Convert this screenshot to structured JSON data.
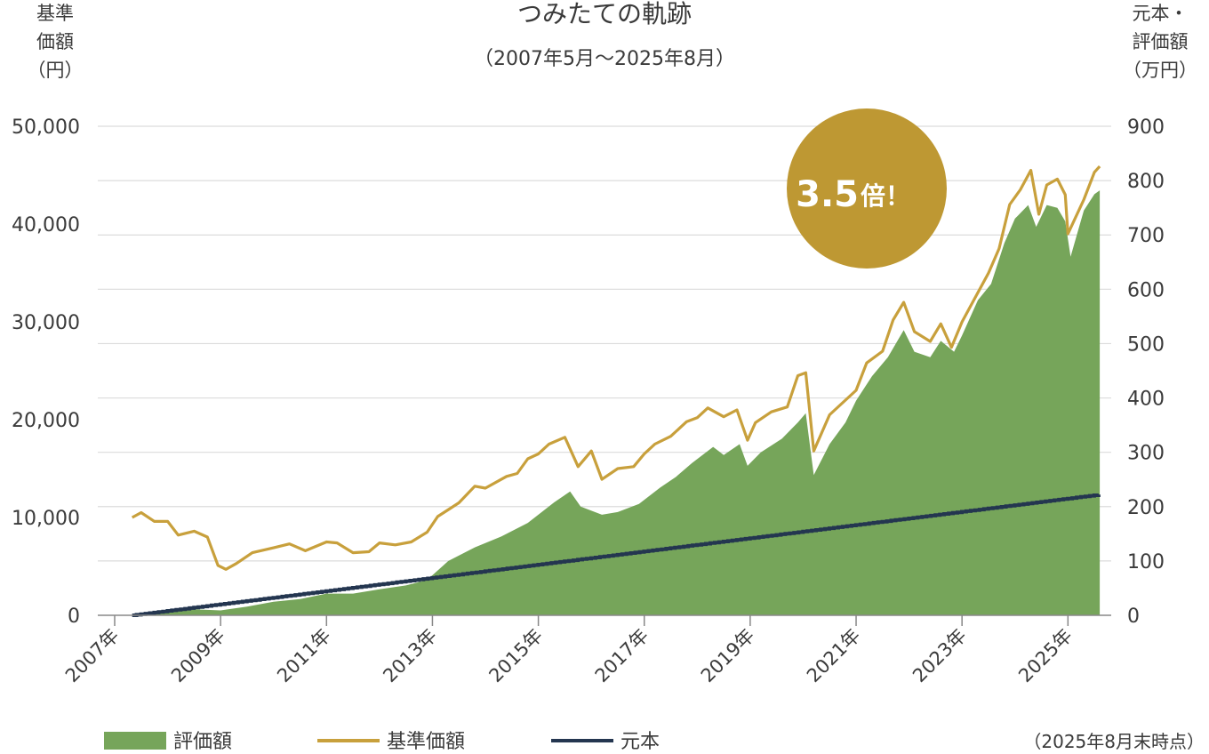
{
  "chart_data": {
    "type": "area",
    "title": "つみたての軌跡",
    "subtitle": "（2007年5月〜2025年8月）",
    "left_axis_label": [
      "基準",
      "価額",
      "（円）"
    ],
    "right_axis_label": [
      "元本・",
      "評価額",
      "（万円）"
    ],
    "left_ylim": [
      0,
      50000
    ],
    "right_ylim": [
      0,
      900
    ],
    "left_ticks": [
      "0",
      "10,000",
      "20,000",
      "30,000",
      "40,000",
      "50,000"
    ],
    "right_ticks": [
      "0",
      "100",
      "200",
      "300",
      "400",
      "500",
      "600",
      "700",
      "800",
      "900"
    ],
    "x_ticks": [
      "2007年",
      "2009年",
      "2011年",
      "2013年",
      "2015年",
      "2017年",
      "2019年",
      "2021年",
      "2023年",
      "2025年"
    ],
    "x_range": [
      2007.0,
      2025.75
    ],
    "grid": true,
    "badge": {
      "main": "3.5",
      "suffix": "倍！",
      "color": "#be9833"
    },
    "legend": [
      {
        "label": "評価額",
        "color": "#76a55a",
        "kind": "area"
      },
      {
        "label": "基準価額",
        "color": "#c8a03c",
        "kind": "line"
      },
      {
        "label": "元本",
        "color": "#243650",
        "kind": "line"
      }
    ],
    "note": "（2025年8月末時点）",
    "series": [
      {
        "name": "基準価額",
        "axis": "left",
        "color": "#c8a03c",
        "points": [
          [
            2007.33,
            10000
          ],
          [
            2007.5,
            10500
          ],
          [
            2007.75,
            9600
          ],
          [
            2008.0,
            9600
          ],
          [
            2008.2,
            8200
          ],
          [
            2008.5,
            8600
          ],
          [
            2008.75,
            8000
          ],
          [
            2008.95,
            5100
          ],
          [
            2009.1,
            4700
          ],
          [
            2009.3,
            5300
          ],
          [
            2009.6,
            6400
          ],
          [
            2010.0,
            6900
          ],
          [
            2010.3,
            7300
          ],
          [
            2010.6,
            6600
          ],
          [
            2011.0,
            7500
          ],
          [
            2011.2,
            7400
          ],
          [
            2011.5,
            6400
          ],
          [
            2011.8,
            6500
          ],
          [
            2012.0,
            7400
          ],
          [
            2012.3,
            7200
          ],
          [
            2012.6,
            7500
          ],
          [
            2012.9,
            8500
          ],
          [
            2013.1,
            10100
          ],
          [
            2013.5,
            11500
          ],
          [
            2013.8,
            13200
          ],
          [
            2014.0,
            13000
          ],
          [
            2014.4,
            14200
          ],
          [
            2014.6,
            14500
          ],
          [
            2014.8,
            16000
          ],
          [
            2015.0,
            16500
          ],
          [
            2015.2,
            17500
          ],
          [
            2015.5,
            18200
          ],
          [
            2015.75,
            15200
          ],
          [
            2016.0,
            16800
          ],
          [
            2016.2,
            13900
          ],
          [
            2016.5,
            15000
          ],
          [
            2016.8,
            15200
          ],
          [
            2017.0,
            16500
          ],
          [
            2017.2,
            17500
          ],
          [
            2017.5,
            18300
          ],
          [
            2017.8,
            19800
          ],
          [
            2018.0,
            20200
          ],
          [
            2018.2,
            21200
          ],
          [
            2018.5,
            20300
          ],
          [
            2018.75,
            21000
          ],
          [
            2018.95,
            17900
          ],
          [
            2019.1,
            19700
          ],
          [
            2019.4,
            20800
          ],
          [
            2019.7,
            21300
          ],
          [
            2019.9,
            24500
          ],
          [
            2020.05,
            24800
          ],
          [
            2020.2,
            16800
          ],
          [
            2020.5,
            20500
          ],
          [
            2020.8,
            22000
          ],
          [
            2021.0,
            23000
          ],
          [
            2021.2,
            25800
          ],
          [
            2021.5,
            27000
          ],
          [
            2021.7,
            30200
          ],
          [
            2021.9,
            32000
          ],
          [
            2022.1,
            29000
          ],
          [
            2022.4,
            28000
          ],
          [
            2022.6,
            29800
          ],
          [
            2022.8,
            27400
          ],
          [
            2023.0,
            30000
          ],
          [
            2023.2,
            32000
          ],
          [
            2023.5,
            35000
          ],
          [
            2023.7,
            37500
          ],
          [
            2023.9,
            42000
          ],
          [
            2024.1,
            43500
          ],
          [
            2024.3,
            45500
          ],
          [
            2024.45,
            41000
          ],
          [
            2024.6,
            44000
          ],
          [
            2024.8,
            44600
          ],
          [
            2024.95,
            43000
          ],
          [
            2025.0,
            39000
          ],
          [
            2025.3,
            42500
          ],
          [
            2025.5,
            45300
          ],
          [
            2025.6,
            45900
          ]
        ]
      },
      {
        "name": "評価額",
        "axis": "right",
        "color": "#76a55a",
        "points": [
          [
            2007.33,
            0
          ],
          [
            2007.75,
            3
          ],
          [
            2008.0,
            7
          ],
          [
            2008.5,
            11
          ],
          [
            2009.0,
            9
          ],
          [
            2009.5,
            16
          ],
          [
            2010.0,
            25
          ],
          [
            2010.5,
            30
          ],
          [
            2011.0,
            40
          ],
          [
            2011.5,
            40
          ],
          [
            2012.0,
            48
          ],
          [
            2012.5,
            55
          ],
          [
            2012.9,
            65
          ],
          [
            2013.3,
            100
          ],
          [
            2013.8,
            125
          ],
          [
            2014.3,
            145
          ],
          [
            2014.8,
            170
          ],
          [
            2015.3,
            208
          ],
          [
            2015.6,
            228
          ],
          [
            2015.8,
            200
          ],
          [
            2016.2,
            185
          ],
          [
            2016.5,
            190
          ],
          [
            2016.9,
            205
          ],
          [
            2017.3,
            235
          ],
          [
            2017.6,
            255
          ],
          [
            2017.9,
            280
          ],
          [
            2018.3,
            310
          ],
          [
            2018.5,
            295
          ],
          [
            2018.8,
            315
          ],
          [
            2018.95,
            275
          ],
          [
            2019.2,
            300
          ],
          [
            2019.6,
            325
          ],
          [
            2019.9,
            355
          ],
          [
            2020.05,
            372
          ],
          [
            2020.2,
            258
          ],
          [
            2020.5,
            315
          ],
          [
            2020.8,
            355
          ],
          [
            2021.0,
            395
          ],
          [
            2021.3,
            440
          ],
          [
            2021.6,
            475
          ],
          [
            2021.9,
            525
          ],
          [
            2022.1,
            485
          ],
          [
            2022.4,
            475
          ],
          [
            2022.6,
            505
          ],
          [
            2022.85,
            485
          ],
          [
            2023.0,
            515
          ],
          [
            2023.3,
            580
          ],
          [
            2023.55,
            610
          ],
          [
            2023.8,
            685
          ],
          [
            2024.0,
            730
          ],
          [
            2024.25,
            755
          ],
          [
            2024.4,
            715
          ],
          [
            2024.6,
            755
          ],
          [
            2024.8,
            750
          ],
          [
            2024.95,
            725
          ],
          [
            2025.05,
            660
          ],
          [
            2025.3,
            745
          ],
          [
            2025.5,
            775
          ],
          [
            2025.6,
            782
          ]
        ]
      },
      {
        "name": "元本",
        "axis": "right",
        "color": "#243650",
        "points": [
          [
            2007.33,
            0
          ],
          [
            2025.6,
            222
          ]
        ]
      }
    ]
  }
}
